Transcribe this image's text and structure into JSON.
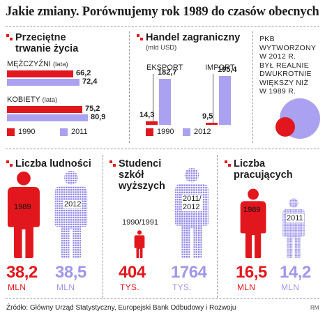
{
  "title": "Jakie zmiany. Porównujemy rok 1989 do czasów obecnych",
  "colors": {
    "red": "#e2171e",
    "purple": "#aaa2f0",
    "dotted": "#8f86e6"
  },
  "life": {
    "title": "Przeciętne\ntrwanie życia",
    "groups": [
      {
        "label": "MĘŻCZYŹNI",
        "unit": "(lata)"
      },
      {
        "label": "KOBIETY",
        "unit": "(lata)"
      }
    ]
  },
  "trade": {
    "title": "Handel zagraniczny",
    "unit": "(mld USD)",
    "groups": [
      "EKSPORT",
      "IMPORT"
    ]
  },
  "pkb": {
    "text": [
      "PKB",
      "WYTWORZONY",
      "W 2012 R.",
      "BYŁ REALNIE",
      "DWUKROTNIE",
      "WIĘKSZY NIŻ",
      "W 1989 R."
    ]
  },
  "legend_left": [
    "1990",
    "2011"
  ],
  "legend_trade": [
    "1990",
    "2012"
  ],
  "population": {
    "title": "Liczba ludności",
    "labels": [
      "1989",
      "2012"
    ],
    "values": [
      "38,2",
      "38,5"
    ],
    "unit": "MLN"
  },
  "students": {
    "title": "Studenci\nszkół\nwyższych",
    "labels": [
      "1990/1991",
      "2011/\n2012"
    ],
    "values": [
      "404",
      "1764"
    ],
    "unit": "TYS."
  },
  "workers": {
    "title": "Liczba\npracujących",
    "labels": [
      "1989",
      "2011"
    ],
    "values": [
      "16,5",
      "14,2"
    ],
    "unit": "MLN"
  },
  "source": "Źródło: Główny Urząd Statystyczny, Europejski Bank Odbudowy i Rozwoju",
  "credit": "RM",
  "chart_data": [
    {
      "type": "bar",
      "title": "Przeciętne trwanie życia",
      "categories": [
        "MĘŻCZYŹNI (lata)",
        "KOBIETY (lata)"
      ],
      "series": [
        {
          "name": "1990",
          "values": [
            66.2,
            75.2
          ]
        },
        {
          "name": "2011",
          "values": [
            72.4,
            80.9
          ]
        }
      ],
      "legend": "bottom"
    },
    {
      "type": "bar",
      "title": "Handel zagraniczny",
      "ylabel": "(mld USD)",
      "categories": [
        "EKSPORT",
        "IMPORT"
      ],
      "series": [
        {
          "name": "1990",
          "values": [
            14.3,
            9.5
          ]
        },
        {
          "name": "2012",
          "values": [
            182.7,
            195.4
          ]
        }
      ],
      "legend": "bottom"
    },
    {
      "type": "bar",
      "title": "Liczba ludności",
      "categories": [
        "1989",
        "2012"
      ],
      "values": [
        38.2,
        38.5
      ],
      "unit": "MLN"
    },
    {
      "type": "bar",
      "title": "Studenci szkół wyższych",
      "categories": [
        "1990/1991",
        "2011/2012"
      ],
      "values": [
        404,
        1764
      ],
      "unit": "TYS."
    },
    {
      "type": "bar",
      "title": "Liczba pracujących",
      "categories": [
        "1989",
        "2011"
      ],
      "values": [
        16.5,
        14.2
      ],
      "unit": "MLN"
    }
  ]
}
